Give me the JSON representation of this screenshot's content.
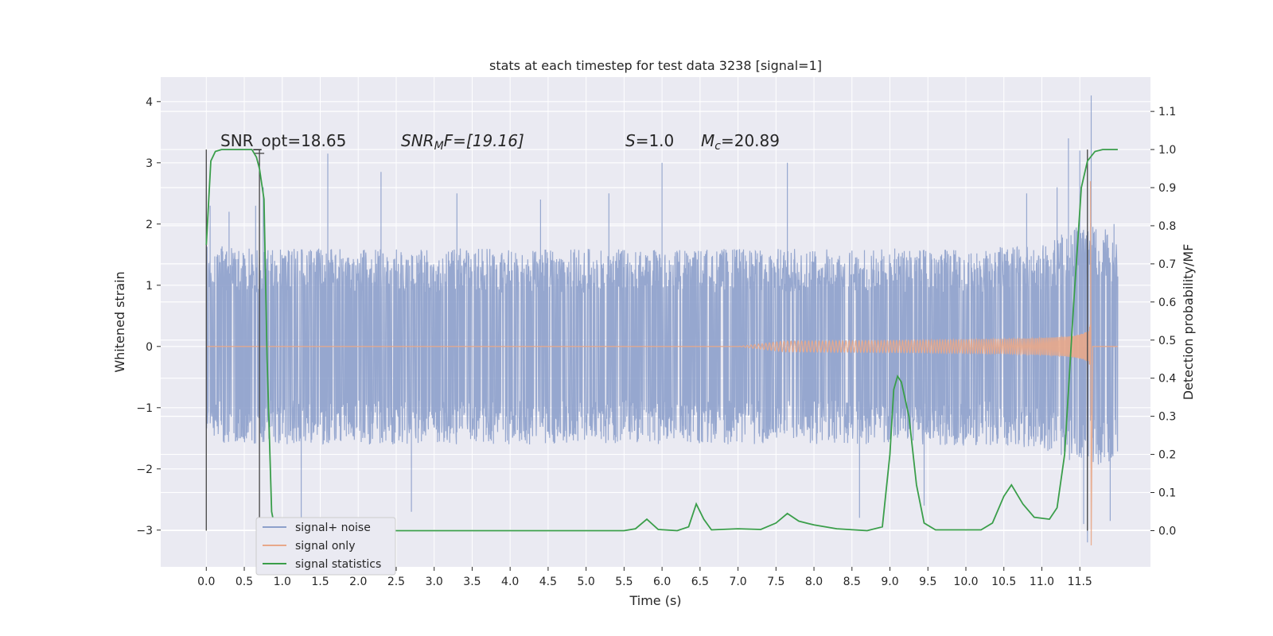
{
  "chart_data": {
    "type": "line",
    "title": "stats at each timestep for test data 3238 [signal=1]",
    "xlabel": "Time (s)",
    "ylabel": "Whitened strain",
    "y2label": "Detection probability/MF",
    "xlim": [
      -0.6,
      12.43
    ],
    "ylim": [
      -3.6,
      4.4
    ],
    "y2lim": [
      -0.095,
      1.19
    ],
    "x_ticks": [
      0.0,
      0.5,
      1.0,
      1.5,
      2.0,
      2.5,
      3.0,
      3.5,
      4.0,
      4.5,
      5.0,
      5.5,
      6.0,
      6.5,
      7.0,
      7.5,
      8.0,
      8.5,
      9.0,
      9.5,
      10.0,
      10.5,
      11.0,
      11.5
    ],
    "x_tick_labels": [
      "0.0",
      "0.5",
      "1.0",
      "1.5",
      "2.0",
      "2.5",
      "3.0",
      "3.5",
      "4.0",
      "4.5",
      "5.0",
      "5.5",
      "6.0",
      "6.5",
      "7.0",
      "7.5",
      "8.0",
      "8.5",
      "9.0",
      "9.5",
      "10.0",
      "10.5",
      "11.0",
      "11.5"
    ],
    "y_ticks": [
      4,
      3,
      2,
      1,
      0,
      -1,
      -2,
      -3
    ],
    "y_tick_labels": [
      "4",
      "3",
      "2",
      "1",
      "0",
      "−1",
      "−2",
      "−3"
    ],
    "y2_ticks": [
      1.1,
      1.0,
      0.9,
      0.8,
      0.7,
      0.6,
      0.5,
      0.4,
      0.3,
      0.2,
      0.1,
      0.0
    ],
    "y2_tick_labels": [
      "1.1",
      "1.0",
      "0.9",
      "0.8",
      "0.7",
      "0.6",
      "0.5",
      "0.4",
      "0.3",
      "0.2",
      "0.1",
      "0.0"
    ],
    "grid": true,
    "legend_position": "lower-left",
    "annotations": {
      "snr_opt": "SNR_opt=18.65",
      "snr_mf_sym": "SNR",
      "snr_mf_sub": "M",
      "snr_mf_rest": "F=[19.16]",
      "s_sym": "S",
      "s_rest": "=1.0",
      "mc_sym": "M",
      "mc_sub": "c",
      "mc_rest": "=20.89"
    },
    "markers_x": [
      0.0,
      0.7,
      11.6
    ],
    "series": [
      {
        "name": "signal+ noise",
        "color": "#8da0cb",
        "duration": 12.0,
        "envelope_top": [
          [
            0.0,
            1.7
          ],
          [
            0.5,
            1.6
          ],
          [
            1.0,
            1.6
          ],
          [
            2.0,
            1.6
          ],
          [
            3.0,
            1.6
          ],
          [
            4.0,
            1.6
          ],
          [
            5.0,
            1.6
          ],
          [
            6.0,
            1.6
          ],
          [
            7.0,
            1.6
          ],
          [
            8.0,
            1.6
          ],
          [
            9.0,
            1.6
          ],
          [
            10.0,
            1.6
          ],
          [
            11.0,
            1.65
          ],
          [
            11.5,
            2.0
          ],
          [
            12.0,
            1.9
          ]
        ],
        "envelope_bottom": [
          [
            0.0,
            -1.6
          ],
          [
            1.0,
            -1.6
          ],
          [
            3.0,
            -1.6
          ],
          [
            5.0,
            -1.6
          ],
          [
            7.0,
            -1.6
          ],
          [
            9.0,
            -1.6
          ],
          [
            11.0,
            -1.65
          ],
          [
            11.5,
            -2.0
          ],
          [
            12.0,
            -1.9
          ]
        ],
        "spikes": [
          [
            0.05,
            2.3
          ],
          [
            0.3,
            2.2
          ],
          [
            0.65,
            2.3
          ],
          [
            0.75,
            2.6
          ],
          [
            1.6,
            3.15
          ],
          [
            2.3,
            2.85
          ],
          [
            2.7,
            -2.7
          ],
          [
            1.25,
            -2.9
          ],
          [
            3.3,
            2.5
          ],
          [
            4.4,
            2.4
          ],
          [
            5.3,
            2.5
          ],
          [
            6.0,
            3.0
          ],
          [
            7.65,
            3.0
          ],
          [
            8.6,
            -2.8
          ],
          [
            9.45,
            -2.6
          ],
          [
            10.8,
            2.5
          ],
          [
            11.2,
            2.6
          ],
          [
            11.35,
            3.4
          ],
          [
            11.5,
            3.2
          ],
          [
            11.55,
            -2.9
          ],
          [
            11.65,
            4.1
          ],
          [
            11.6,
            -3.2
          ],
          [
            11.9,
            -2.85
          ],
          [
            11.95,
            2.0
          ]
        ]
      },
      {
        "name": "signal only",
        "color": "#e8a88a",
        "start": 7.0,
        "end": 11.65,
        "final_peak": 2.7,
        "final_trough": -3.25
      },
      {
        "name": "signal statistics",
        "color": "#3a9e4a",
        "points": [
          [
            0.0,
            0.75
          ],
          [
            0.06,
            0.97
          ],
          [
            0.12,
            0.995
          ],
          [
            0.2,
            1.0
          ],
          [
            0.6,
            1.0
          ],
          [
            0.66,
            0.98
          ],
          [
            0.7,
            0.95
          ],
          [
            0.76,
            0.87
          ],
          [
            0.8,
            0.45
          ],
          [
            0.86,
            0.05
          ],
          [
            0.9,
            0.01
          ],
          [
            1.0,
            0.0
          ],
          [
            1.6,
            0.003
          ],
          [
            1.8,
            0.0
          ],
          [
            3.0,
            0.0
          ],
          [
            5.5,
            0.0
          ],
          [
            5.65,
            0.005
          ],
          [
            5.8,
            0.03
          ],
          [
            5.95,
            0.003
          ],
          [
            6.2,
            0.0
          ],
          [
            6.35,
            0.01
          ],
          [
            6.45,
            0.07
          ],
          [
            6.55,
            0.03
          ],
          [
            6.65,
            0.002
          ],
          [
            7.0,
            0.005
          ],
          [
            7.3,
            0.003
          ],
          [
            7.5,
            0.02
          ],
          [
            7.65,
            0.045
          ],
          [
            7.8,
            0.025
          ],
          [
            8.0,
            0.015
          ],
          [
            8.3,
            0.005
          ],
          [
            8.7,
            0.0
          ],
          [
            8.9,
            0.01
          ],
          [
            9.0,
            0.2
          ],
          [
            9.05,
            0.37
          ],
          [
            9.1,
            0.405
          ],
          [
            9.15,
            0.39
          ],
          [
            9.25,
            0.3
          ],
          [
            9.35,
            0.12
          ],
          [
            9.45,
            0.02
          ],
          [
            9.6,
            0.002
          ],
          [
            10.2,
            0.002
          ],
          [
            10.35,
            0.02
          ],
          [
            10.5,
            0.09
          ],
          [
            10.6,
            0.12
          ],
          [
            10.75,
            0.07
          ],
          [
            10.9,
            0.035
          ],
          [
            11.1,
            0.03
          ],
          [
            11.2,
            0.06
          ],
          [
            11.3,
            0.2
          ],
          [
            11.42,
            0.6
          ],
          [
            11.52,
            0.9
          ],
          [
            11.6,
            0.97
          ],
          [
            11.7,
            0.995
          ],
          [
            11.8,
            1.0
          ],
          [
            12.0,
            1.0
          ]
        ]
      }
    ]
  }
}
